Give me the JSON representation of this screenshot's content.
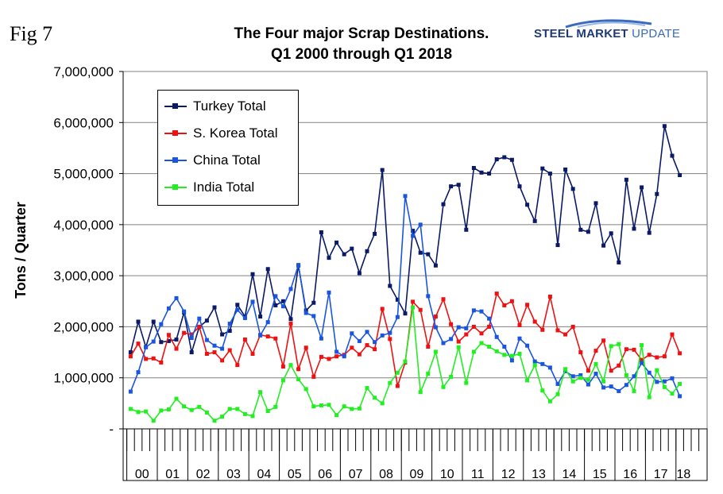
{
  "header": {
    "fig_label": "Fig 7",
    "title_line1": "The Four major Scrap Destinations.",
    "title_line2": "Q1 2000 through Q1 2018",
    "brand_bold": "STEEL MARKET",
    "brand_light": "UPDATE"
  },
  "chart_data": {
    "type": "line",
    "title": "The Four major Scrap Destinations. Q1 2000 through Q1 2018",
    "xlabel": "",
    "ylabel": "Tons / Quarter",
    "ylim": [
      0,
      7000000
    ],
    "yticks": [
      "-",
      "1,000,000",
      "2,000,000",
      "3,000,000",
      "4,000,000",
      "5,000,000",
      "6,000,000",
      "7,000,000"
    ],
    "year_labels": [
      "00",
      "01",
      "02",
      "03",
      "04",
      "05",
      "06",
      "07",
      "08",
      "09",
      "10",
      "11",
      "12",
      "13",
      "14",
      "15",
      "16",
      "17",
      "18"
    ],
    "grid": true,
    "legend_position": "top-left",
    "series": [
      {
        "name": "Turkey Total",
        "color": "#0b1a66",
        "values": [
          1500000,
          2100000,
          1600000,
          2100000,
          1700000,
          1720000,
          1750000,
          2280000,
          1500000,
          2000000,
          2120000,
          2380000,
          1850000,
          1920000,
          2430000,
          2200000,
          3030000,
          2200000,
          3130000,
          2420000,
          2500000,
          2150000,
          3200000,
          2320000,
          2470000,
          3850000,
          3350000,
          3650000,
          3420000,
          3530000,
          3050000,
          3480000,
          3820000,
          5070000,
          2800000,
          2530000,
          2260000,
          3880000,
          3450000,
          3420000,
          3200000,
          4400000,
          4750000,
          4780000,
          3900000,
          5110000,
          5020000,
          5000000,
          5280000,
          5320000,
          5270000,
          4750000,
          4390000,
          4070000,
          5100000,
          5000000,
          3600000,
          5080000,
          4700000,
          3900000,
          3860000,
          4420000,
          3590000,
          3830000,
          3260000,
          4880000,
          3920000,
          4730000,
          3840000,
          4600000,
          5930000,
          5350000,
          4970000
        ]
      },
      {
        "name": "S. Korea Total",
        "color": "#ee1111",
        "values": [
          1420000,
          1670000,
          1370000,
          1380000,
          1300000,
          1840000,
          1570000,
          1880000,
          1850000,
          2000000,
          1470000,
          1500000,
          1340000,
          1540000,
          1250000,
          1750000,
          1470000,
          1840000,
          1810000,
          1770000,
          1220000,
          2060000,
          1170000,
          1590000,
          1020000,
          1410000,
          1370000,
          1420000,
          1450000,
          1590000,
          1460000,
          1640000,
          1560000,
          2350000,
          1760000,
          840000,
          1300000,
          2490000,
          2330000,
          1610000,
          2200000,
          2540000,
          2050000,
          1710000,
          1850000,
          2000000,
          1870000,
          2000000,
          2650000,
          2420000,
          2500000,
          2030000,
          2430000,
          2100000,
          1940000,
          2590000,
          1930000,
          1850000,
          2000000,
          1500000,
          1140000,
          1530000,
          1730000,
          1140000,
          1240000,
          1560000,
          1550000,
          1350000,
          1450000,
          1400000,
          1420000,
          1850000,
          1480000
        ]
      },
      {
        "name": "China Total",
        "color": "#1a55e0",
        "values": [
          730000,
          1110000,
          1600000,
          1710000,
          2050000,
          2360000,
          2560000,
          2300000,
          1780000,
          2160000,
          1740000,
          1630000,
          1570000,
          2060000,
          2330000,
          2170000,
          2490000,
          1830000,
          2090000,
          2600000,
          2400000,
          2740000,
          3210000,
          2270000,
          2210000,
          1770000,
          2670000,
          1510000,
          1420000,
          1870000,
          1720000,
          1900000,
          1700000,
          1830000,
          1880000,
          2190000,
          4560000,
          3780000,
          4000000,
          2600000,
          1990000,
          1680000,
          1760000,
          1990000,
          1970000,
          2320000,
          2300000,
          2160000,
          1800000,
          1610000,
          1340000,
          1770000,
          1630000,
          1320000,
          1270000,
          1200000,
          880000,
          1130000,
          1030000,
          1050000,
          870000,
          1080000,
          810000,
          830000,
          740000,
          860000,
          1030000,
          1290000,
          1100000,
          920000,
          930000,
          990000,
          640000
        ]
      },
      {
        "name": "India Total",
        "color": "#22ee22",
        "values": [
          390000,
          330000,
          340000,
          160000,
          360000,
          380000,
          590000,
          440000,
          370000,
          430000,
          320000,
          160000,
          240000,
          390000,
          390000,
          290000,
          250000,
          720000,
          350000,
          430000,
          950000,
          1250000,
          970000,
          780000,
          440000,
          460000,
          470000,
          270000,
          440000,
          390000,
          400000,
          800000,
          610000,
          500000,
          900000,
          1100000,
          1320000,
          2380000,
          720000,
          1080000,
          1510000,
          820000,
          1020000,
          1600000,
          900000,
          1510000,
          1680000,
          1610000,
          1520000,
          1450000,
          1430000,
          1470000,
          950000,
          1250000,
          750000,
          540000,
          680000,
          1170000,
          930000,
          1000000,
          960000,
          1270000,
          930000,
          1620000,
          1660000,
          1050000,
          740000,
          1640000,
          620000,
          1150000,
          820000,
          690000,
          880000
        ]
      }
    ]
  }
}
